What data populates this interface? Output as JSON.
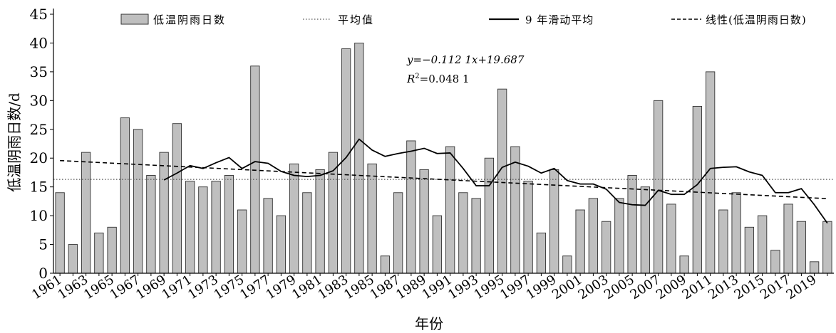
{
  "chart_data": {
    "type": "bar",
    "title": "",
    "xlabel": "年份",
    "ylabel": "低温阴雨日数/d",
    "ylim": [
      0,
      45
    ],
    "yticks": [
      0,
      5,
      10,
      15,
      20,
      25,
      30,
      35,
      40,
      45
    ],
    "grid": false,
    "legend_position": "top",
    "legend": {
      "bar": "低温阴雨日数",
      "mean": "平均值",
      "moving": "9 年滑动平均",
      "linear": "线性(低温阴雨日数)"
    },
    "equation": {
      "line1": "y=−0.112 1x+19.687",
      "line2_prefix": "R",
      "line2_sup": "2",
      "line2_rest": "=0.048 1"
    },
    "x": [
      1961,
      1962,
      1963,
      1964,
      1965,
      1966,
      1967,
      1968,
      1969,
      1970,
      1971,
      1972,
      1973,
      1974,
      1975,
      1976,
      1977,
      1978,
      1979,
      1980,
      1981,
      1982,
      1983,
      1984,
      1985,
      1986,
      1987,
      1988,
      1989,
      1990,
      1991,
      1992,
      1993,
      1994,
      1995,
      1996,
      1997,
      1998,
      1999,
      2000,
      2001,
      2002,
      2003,
      2004,
      2005,
      2006,
      2007,
      2008,
      2009,
      2010,
      2011,
      2012,
      2013,
      2014,
      2015,
      2016,
      2017,
      2018,
      2019,
      2020
    ],
    "x_tick_labels": [
      "1961",
      "1963",
      "1965",
      "1967",
      "1969",
      "1971",
      "1973",
      "1975",
      "1977",
      "1979",
      "1981",
      "1983",
      "1985",
      "1987",
      "1989",
      "1991",
      "1993",
      "1995",
      "1997",
      "1999",
      "2001",
      "2003",
      "2005",
      "2007",
      "2009",
      "2011",
      "2013",
      "2015",
      "2017",
      "2019"
    ],
    "series": [
      {
        "name": "低温阴雨日数",
        "type": "bar",
        "values": [
          14,
          5,
          21,
          7,
          8,
          27,
          25,
          17,
          21,
          26,
          16,
          15,
          16,
          17,
          11,
          36,
          13,
          10,
          19,
          14,
          18,
          21,
          39,
          40,
          19,
          3,
          14,
          23,
          18,
          10,
          22,
          14,
          13,
          20,
          32,
          22,
          16,
          7,
          18,
          3,
          11,
          13,
          9,
          13,
          17,
          15,
          30,
          12,
          3,
          29,
          35,
          11,
          14,
          8,
          10,
          4,
          12,
          9,
          2,
          9
        ]
      },
      {
        "name": "平均值",
        "type": "hline",
        "value": 16.3
      },
      {
        "name": "9 年滑动平均",
        "type": "line",
        "x": [
          1969,
          1970,
          1971,
          1972,
          1973,
          1974,
          1975,
          1976,
          1977,
          1978,
          1979,
          1980,
          1981,
          1982,
          1983,
          1984,
          1985,
          1986,
          1987,
          1988,
          1989,
          1990,
          1991,
          1992,
          1993,
          1994,
          1995,
          1996,
          1997,
          1998,
          1999,
          2000,
          2001,
          2002,
          2003,
          2004,
          2005,
          2006,
          2007,
          2008,
          2009,
          2010,
          2011,
          2012,
          2013,
          2014,
          2015,
          2016,
          2017,
          2018,
          2019,
          2020
        ],
        "values": [
          16.2,
          17.4,
          18.7,
          18.2,
          19.2,
          20.1,
          18.2,
          19.4,
          19.1,
          17.7,
          17.0,
          16.8,
          17.0,
          17.8,
          20.1,
          23.3,
          21.4,
          20.3,
          20.8,
          21.2,
          21.7,
          20.8,
          20.9,
          18.2,
          15.2,
          15.2,
          18.4,
          19.3,
          18.6,
          17.4,
          18.2,
          16.1,
          15.5,
          15.5,
          14.6,
          12.3,
          11.9,
          11.8,
          14.4,
          13.7,
          13.7,
          15.4,
          18.2,
          18.4,
          18.5,
          17.6,
          17.0,
          14.0,
          14.0,
          14.7,
          11.9,
          8.7
        ]
      },
      {
        "name": "线性(低温阴雨日数)",
        "type": "trend",
        "slope": -0.1121,
        "intercept": 19.687
      }
    ]
  }
}
